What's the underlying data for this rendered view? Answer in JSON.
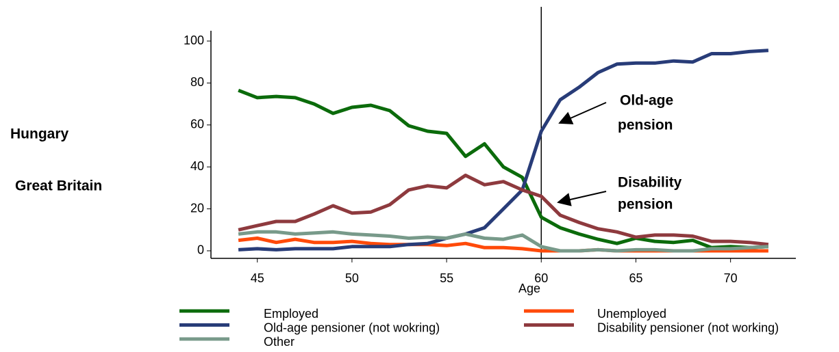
{
  "chart_data": {
    "type": "line",
    "x": [
      44,
      45,
      46,
      47,
      48,
      49,
      50,
      51,
      52,
      53,
      54,
      55,
      56,
      57,
      58,
      59,
      60,
      61,
      62,
      63,
      64,
      65,
      66,
      67,
      68,
      69,
      70,
      71,
      72
    ],
    "x_label": "Age",
    "xlim": [
      42.55,
      73.45
    ],
    "xticks": [
      45,
      50,
      55,
      60,
      65,
      70
    ],
    "ylim": [
      -3.6,
      104.9
    ],
    "yticks": [
      0,
      20,
      40,
      60,
      80,
      100
    ],
    "vline": 60,
    "row_labels": [
      "Hungary",
      "Great Britain"
    ],
    "annotations": [
      [
        "Old-age",
        "pension"
      ],
      [
        "Disability",
        "pension"
      ]
    ],
    "series": [
      {
        "name": "Employed",
        "color": "#0b6b0b",
        "values": [
          76.5,
          73,
          73.6,
          73,
          70,
          65.5,
          68.4,
          69.4,
          66.8,
          59.6,
          57,
          56,
          45,
          51,
          40,
          35,
          16,
          11,
          8,
          5.5,
          3.5,
          6,
          4.5,
          4,
          5,
          1.5,
          2,
          1.5,
          2
        ]
      },
      {
        "name": "Unemployed",
        "color": "#ff4a0a",
        "values": [
          5,
          6,
          4,
          5.5,
          4,
          4,
          4.5,
          3.5,
          3,
          3,
          3,
          2.5,
          3.5,
          1.5,
          1.5,
          1,
          0,
          0,
          0,
          0.5,
          0,
          0,
          0,
          0,
          0,
          0,
          0,
          0,
          0
        ]
      },
      {
        "name": "Old-age pensioner (not wokring)",
        "color": "#283c78",
        "values": [
          0.5,
          1,
          0.5,
          1,
          1,
          1,
          2,
          2,
          2,
          3,
          3.5,
          6,
          8,
          11,
          20,
          29,
          57,
          72,
          78,
          85,
          89,
          89.5,
          89.5,
          90.5,
          90,
          94,
          94,
          95,
          95.5
        ]
      },
      {
        "name": "Disability pensioner (not working)",
        "color": "#8e3a3e",
        "values": [
          10,
          12,
          14,
          14,
          17.5,
          21.5,
          18,
          18.5,
          22,
          29,
          31,
          30,
          36,
          31.5,
          33,
          29,
          26,
          17,
          13.5,
          10.5,
          9,
          6.5,
          7.5,
          7.5,
          7,
          4.5,
          4.5,
          4,
          3
        ]
      },
      {
        "name": "Other",
        "color": "#789a8a",
        "values": [
          8,
          9,
          9,
          8,
          8.5,
          9,
          8,
          7.5,
          7,
          6,
          6.5,
          6,
          8,
          6,
          5.5,
          7.5,
          2,
          0,
          0,
          0.5,
          0,
          0.5,
          0.5,
          0,
          0,
          1,
          1,
          1.5,
          2
        ]
      }
    ]
  }
}
